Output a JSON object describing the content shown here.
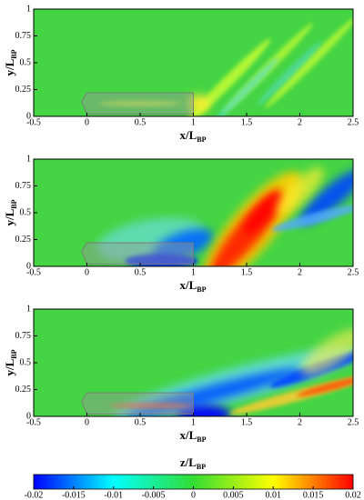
{
  "chart_data": [
    {
      "type": "contour",
      "xlabel": "x/L",
      "xlabel_subscript": "BP",
      "ylabel": "y/L",
      "ylabel_subscript": "BP",
      "xlim": [
        -0.5,
        2.5
      ],
      "ylim": [
        0,
        1
      ],
      "xticks": [
        -0.5,
        0,
        0.5,
        1,
        1.5,
        2,
        2.5
      ],
      "yticks": [
        0,
        0.25,
        0.5,
        0.75,
        1
      ]
    },
    {
      "type": "contour",
      "xlabel": "x/L",
      "xlabel_subscript": "BP",
      "ylabel": "y/L",
      "ylabel_subscript": "BP",
      "xlim": [
        -0.5,
        2.5
      ],
      "ylim": [
        0,
        1
      ],
      "xticks": [
        -0.5,
        0,
        0.5,
        1,
        1.5,
        2,
        2.5
      ],
      "yticks": [
        0,
        0.25,
        0.5,
        0.75,
        1
      ]
    },
    {
      "type": "contour",
      "xlabel": "x/L",
      "xlabel_subscript": "BP",
      "ylabel": "y/L",
      "ylabel_subscript": "BP",
      "xlim": [
        -0.5,
        2.5
      ],
      "ylim": [
        0,
        1
      ],
      "xticks": [
        -0.5,
        0,
        0.5,
        1,
        1.5,
        2,
        2.5
      ],
      "yticks": [
        0,
        0.25,
        0.5,
        0.75,
        1
      ]
    },
    {
      "type": "colorbar",
      "title": "z/L",
      "title_subscript": "BP",
      "xlim": [
        -0.02,
        0.02
      ],
      "xticks": [
        -0.02,
        -0.015,
        -0.01,
        -0.005,
        0,
        0.005,
        0.01,
        0.015,
        0.02
      ],
      "colors": [
        "#0000ff",
        "#00ffff",
        "#33dd33",
        "#ffff00",
        "#ff0000"
      ]
    }
  ]
}
